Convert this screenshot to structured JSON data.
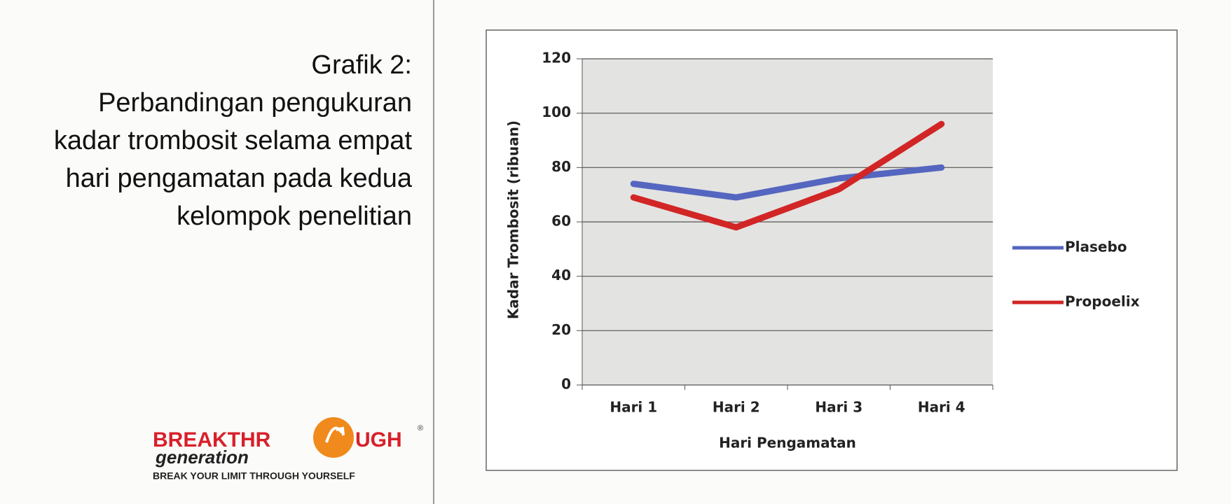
{
  "caption": {
    "label": "Grafik 2:",
    "lines": [
      "Perbandingan pengukuran",
      "kadar trombosit selama empat",
      "hari pengamatan pada kedua",
      "kelompok penelitian"
    ]
  },
  "logo": {
    "brand_left": "BREAKTHR",
    "brand_right": "UGH",
    "registered": "®",
    "sub": "generation",
    "tagline": "BREAK YOUR LIMIT THROUGH YOURSELF"
  },
  "chart_data": {
    "type": "line",
    "x_label": "Hari Pengamatan",
    "y_label": "Kadar Trombosit  (ribuan)",
    "categories": [
      "Hari 1",
      "Hari 2",
      "Hari 3",
      "Hari 4"
    ],
    "series": [
      {
        "name": "Plasebo",
        "color": "#5566c0",
        "values": [
          74,
          69,
          76,
          80
        ]
      },
      {
        "name": "Propoelix",
        "color": "#d22525",
        "values": [
          69,
          58,
          72,
          96
        ]
      }
    ],
    "ylim": [
      0,
      120
    ],
    "yticks": [
      0,
      20,
      40,
      60,
      80,
      100,
      120
    ],
    "grid": true,
    "legend": "right"
  }
}
